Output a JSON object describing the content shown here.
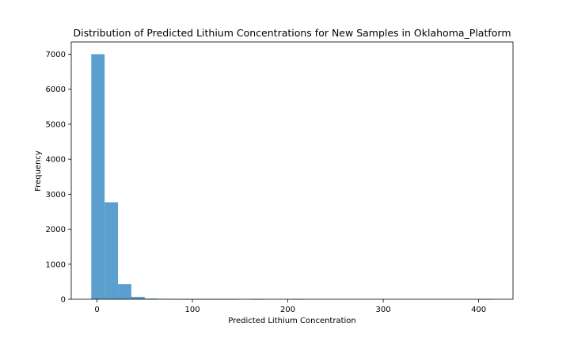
{
  "chart_data": {
    "type": "histogram",
    "title": "Distribution of Predicted Lithium Concentrations for New Samples in Oklahoma_Platform",
    "xlabel": "Predicted Lithium Concentration",
    "ylabel": "Frequency",
    "xlim": [
      -27,
      436
    ],
    "ylim": [
      0,
      7350
    ],
    "xticks": [
      0,
      100,
      200,
      300,
      400
    ],
    "yticks": [
      0,
      1000,
      2000,
      3000,
      4000,
      5000,
      6000,
      7000
    ],
    "bin_width": 14,
    "bins": [
      {
        "start": -6,
        "end": 8,
        "value": 7000
      },
      {
        "start": 8,
        "end": 22,
        "value": 2770
      },
      {
        "start": 22,
        "end": 36,
        "value": 430
      },
      {
        "start": 36,
        "end": 50,
        "value": 70
      },
      {
        "start": 50,
        "end": 64,
        "value": 20
      },
      {
        "start": 64,
        "end": 78,
        "value": 10
      },
      {
        "start": 78,
        "end": 92,
        "value": 4
      },
      {
        "start": 92,
        "end": 106,
        "value": 2
      },
      {
        "start": 106,
        "end": 120,
        "value": 1
      },
      {
        "start": 120,
        "end": 134,
        "value": 1
      },
      {
        "start": 134,
        "end": 148,
        "value": 1
      },
      {
        "start": 148,
        "end": 162,
        "value": 0
      },
      {
        "start": 162,
        "end": 176,
        "value": 1
      },
      {
        "start": 176,
        "end": 190,
        "value": 0
      },
      {
        "start": 190,
        "end": 204,
        "value": 0
      },
      {
        "start": 204,
        "end": 218,
        "value": 1
      },
      {
        "start": 218,
        "end": 232,
        "value": 0
      },
      {
        "start": 232,
        "end": 246,
        "value": 0
      },
      {
        "start": 246,
        "end": 260,
        "value": 0
      },
      {
        "start": 260,
        "end": 274,
        "value": 0
      },
      {
        "start": 274,
        "end": 288,
        "value": 0
      },
      {
        "start": 288,
        "end": 302,
        "value": 0
      },
      {
        "start": 302,
        "end": 316,
        "value": 0
      },
      {
        "start": 316,
        "end": 330,
        "value": 0
      },
      {
        "start": 330,
        "end": 344,
        "value": 0
      },
      {
        "start": 344,
        "end": 358,
        "value": 0
      },
      {
        "start": 358,
        "end": 372,
        "value": 0
      },
      {
        "start": 372,
        "end": 386,
        "value": 0
      },
      {
        "start": 386,
        "end": 400,
        "value": 0
      },
      {
        "start": 400,
        "end": 414,
        "value": 1
      }
    ],
    "bar_color": "#5a9fcd",
    "grid": false,
    "legend": "none"
  }
}
